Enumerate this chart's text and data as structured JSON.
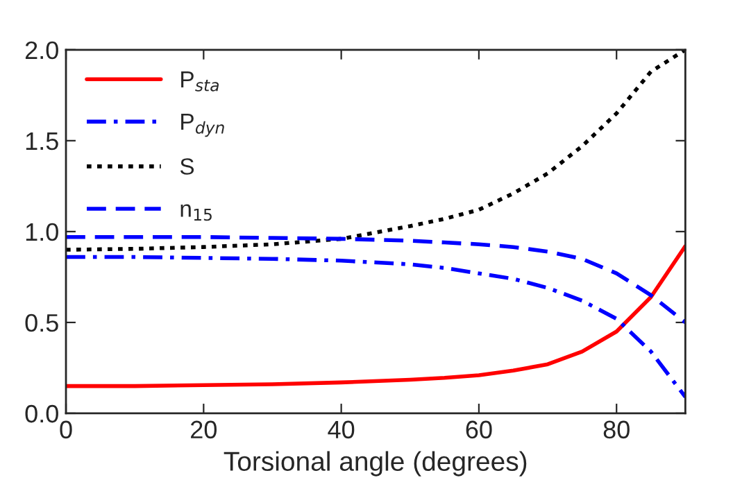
{
  "chart_data": {
    "type": "line",
    "xlabel": "Torsional angle (degrees)",
    "x": [
      0,
      10,
      20,
      30,
      40,
      50,
      55,
      60,
      65,
      70,
      75,
      80,
      85,
      90
    ],
    "series": [
      {
        "name": "P$_{sta}$",
        "color": "#ff0000",
        "line_style": "solid",
        "values": [
          0.15,
          0.15,
          0.155,
          0.16,
          0.17,
          0.185,
          0.195,
          0.21,
          0.235,
          0.27,
          0.34,
          0.45,
          0.64,
          0.92
        ]
      },
      {
        "name": "P$_{dyn}$",
        "color": "#0000ff",
        "line_style": "dashdot",
        "values": [
          0.86,
          0.86,
          0.855,
          0.85,
          0.84,
          0.82,
          0.8,
          0.77,
          0.74,
          0.69,
          0.62,
          0.52,
          0.34,
          0.09
        ]
      },
      {
        "name": "S",
        "color": "#000000",
        "line_style": "dotted",
        "values": [
          0.9,
          0.905,
          0.915,
          0.93,
          0.96,
          1.03,
          1.07,
          1.12,
          1.21,
          1.32,
          1.47,
          1.65,
          1.88,
          2.0
        ]
      },
      {
        "name": "n$_{15}$",
        "color": "#0000ff",
        "line_style": "dashed",
        "values": [
          0.97,
          0.97,
          0.97,
          0.965,
          0.96,
          0.95,
          0.94,
          0.93,
          0.915,
          0.89,
          0.85,
          0.77,
          0.65,
          0.5
        ]
      }
    ],
    "xlim": [
      0,
      90
    ],
    "xticks": [
      0,
      20,
      40,
      60,
      80
    ],
    "ylim": [
      0,
      2.0
    ],
    "yticks": [
      {
        "value": 0,
        "label": "0.0"
      },
      {
        "value": 0.5,
        "label": "0.5"
      },
      {
        "value": 1.0,
        "label": "1.0"
      },
      {
        "value": 1.5,
        "label": "1.5"
      },
      {
        "value": 2.0,
        "label": "2.0"
      }
    ],
    "legend": "top left",
    "grid": false
  }
}
